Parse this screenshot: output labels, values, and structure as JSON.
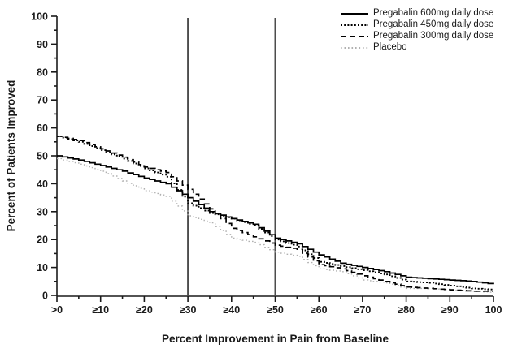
{
  "figure": {
    "y_axis_title": "Percent of Patients Improved",
    "x_axis_title": "Percent Improvement in Pain from Baseline"
  },
  "colors": {
    "line_black": "#000000",
    "placebo_gray": "#b0b0b0",
    "reference_line": "#4d4d4d",
    "axis": "#1a1a1a"
  },
  "chart_data": {
    "type": "line",
    "subtype": "cumulative-step-distribution",
    "title": "",
    "xlabel": "Percent Improvement in Pain from Baseline",
    "ylabel": "Percent of Patients Improved",
    "xlim": [
      0,
      100
    ],
    "ylim": [
      0,
      100
    ],
    "grid": false,
    "legend_position": "top-right",
    "x_tick_labels": [
      ">0",
      "≥10",
      "≥20",
      "≥30",
      "≥40",
      "≥50",
      "≥60",
      "≥70",
      "≥80",
      "≥90",
      "100"
    ],
    "x_tick_values": [
      0,
      10,
      20,
      30,
      40,
      50,
      60,
      70,
      80,
      90,
      100
    ],
    "y_tick_values": [
      0,
      10,
      20,
      30,
      40,
      50,
      60,
      70,
      80,
      90,
      100
    ],
    "reference_lines_x": [
      30,
      50
    ],
    "x": [
      0,
      5,
      10,
      15,
      20,
      25,
      30,
      35,
      40,
      45,
      50,
      55,
      60,
      65,
      70,
      75,
      80,
      85,
      90,
      95,
      100
    ],
    "series": [
      {
        "name": "Pregabalin 600mg daily dose",
        "style": "solid",
        "color": "#000000",
        "values": [
          50,
          48.5,
          46.5,
          44.5,
          42,
          40,
          35,
          30,
          27.5,
          25.5,
          20.5,
          18.5,
          14.5,
          11.5,
          10,
          8.5,
          6.5,
          6,
          5.5,
          5,
          4
        ]
      },
      {
        "name": "Pregabalin 450mg daily dose",
        "style": "dotted",
        "color": "#000000",
        "values": [
          57,
          55,
          52,
          49,
          45.5,
          42.5,
          33,
          29.5,
          27.5,
          25,
          20,
          17.5,
          12,
          10.5,
          9,
          7.5,
          5,
          4.5,
          3.5,
          2.5,
          2
        ]
      },
      {
        "name": "Pregabalin 300mg daily dose",
        "style": "dashed",
        "color": "#000000",
        "values": [
          57,
          55.5,
          52.5,
          49.5,
          46,
          44,
          38,
          31,
          24,
          21,
          18,
          16.5,
          11,
          9.5,
          7,
          5,
          3,
          2.5,
          2,
          1.5,
          1.5
        ]
      },
      {
        "name": "Placebo",
        "style": "dotted-light",
        "color": "#b0b0b0",
        "values": [
          49,
          47,
          44.5,
          41,
          37.5,
          35.5,
          28.5,
          26,
          20.5,
          19,
          15.5,
          14,
          9.5,
          8.5,
          5.5,
          4.5,
          2.5,
          2.5,
          2,
          1.5,
          1
        ]
      }
    ]
  }
}
